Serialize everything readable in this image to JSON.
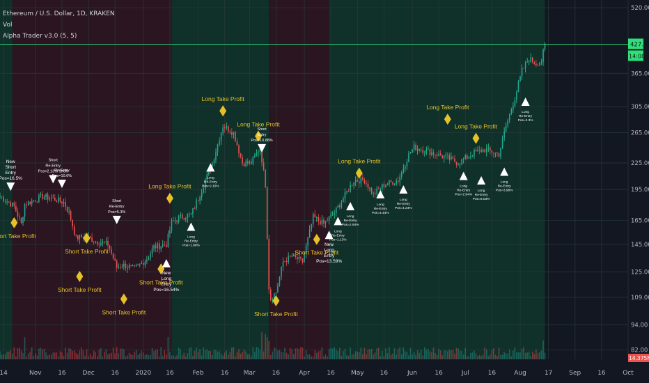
{
  "header": {
    "title": "Ethereum / U.S. Dollar, 1D, KRAKEN",
    "vol_label": "Vol",
    "indicator": "Alpha Trader v3.0 (5, 5)"
  },
  "colors": {
    "background": "#131722",
    "bull": "#26a69a",
    "bear": "#ef5350",
    "bull_wick": "#2fd18b",
    "bear_wick": "#e0494f",
    "long_zone": "#10302a",
    "short_zone": "#2a1520",
    "label_yellow": "#e6c229",
    "label_white": "#ffffff",
    "price_line": "#2fe07a"
  },
  "price_tags": {
    "current_price": "427.09",
    "countdown": "14:08:22",
    "volume": "14.375M"
  },
  "chart_data": {
    "type": "candlestick",
    "y_axis": {
      "scale": "log",
      "ylim": [
        78,
        530
      ],
      "ticks": [
        "520.00",
        "427.09",
        "365.00",
        "305.00",
        "265.00",
        "225.00",
        "195.00",
        "165.00",
        "145.00",
        "125.00",
        "109.00",
        "94.00",
        "82.00"
      ]
    },
    "x_axis": {
      "range": [
        "2019-10-12",
        "2020-10-01"
      ],
      "ticks": [
        {
          "label": "14",
          "date": "2019-10-14"
        },
        {
          "label": "Nov",
          "date": "2019-11-01"
        },
        {
          "label": "16",
          "date": "2019-11-16"
        },
        {
          "label": "Dec",
          "date": "2019-12-01"
        },
        {
          "label": "16",
          "date": "2019-12-16"
        },
        {
          "label": "2020",
          "date": "2020-01-01"
        },
        {
          "label": "16",
          "date": "2020-01-16"
        },
        {
          "label": "Feb",
          "date": "2020-02-01"
        },
        {
          "label": "16",
          "date": "2020-02-16"
        },
        {
          "label": "Mar",
          "date": "2020-03-01"
        },
        {
          "label": "16",
          "date": "2020-03-16"
        },
        {
          "label": "Apr",
          "date": "2020-04-01"
        },
        {
          "label": "16",
          "date": "2020-04-16"
        },
        {
          "label": "May",
          "date": "2020-05-01"
        },
        {
          "label": "16",
          "date": "2020-05-16"
        },
        {
          "label": "Jun",
          "date": "2020-06-01"
        },
        {
          "label": "16",
          "date": "2020-06-16"
        },
        {
          "label": "Jul",
          "date": "2020-07-01"
        },
        {
          "label": "16",
          "date": "2020-07-16"
        },
        {
          "label": "Aug",
          "date": "2020-08-01"
        },
        {
          "label": "17",
          "date": "2020-08-17"
        },
        {
          "label": "Sep",
          "date": "2020-09-01"
        },
        {
          "label": "16",
          "date": "2020-09-16"
        },
        {
          "label": "Oct",
          "date": "2020-10-01"
        }
      ]
    },
    "price_path": [
      [
        "2019-10-12",
        188
      ],
      [
        "2019-10-20",
        178
      ],
      [
        "2019-10-24",
        162
      ],
      [
        "2019-10-26",
        180
      ],
      [
        "2019-11-05",
        188
      ],
      [
        "2019-11-10",
        186
      ],
      [
        "2019-11-17",
        182
      ],
      [
        "2019-11-20",
        172
      ],
      [
        "2019-11-24",
        150
      ],
      [
        "2019-11-29",
        152
      ],
      [
        "2019-12-04",
        148
      ],
      [
        "2019-12-12",
        145
      ],
      [
        "2019-12-17",
        128
      ],
      [
        "2019-12-20",
        130
      ],
      [
        "2019-12-27",
        127
      ],
      [
        "2020-01-03",
        134
      ],
      [
        "2020-01-07",
        143
      ],
      [
        "2020-01-14",
        145
      ],
      [
        "2020-01-17",
        163
      ],
      [
        "2020-01-22",
        168
      ],
      [
        "2020-01-28",
        170
      ],
      [
        "2020-02-02",
        190
      ],
      [
        "2020-02-09",
        225
      ],
      [
        "2020-02-15",
        275
      ],
      [
        "2020-02-18",
        270
      ],
      [
        "2020-02-21",
        265
      ],
      [
        "2020-02-26",
        225
      ],
      [
        "2020-03-02",
        225
      ],
      [
        "2020-03-07",
        245
      ],
      [
        "2020-03-10",
        200
      ],
      [
        "2020-03-12",
        115
      ],
      [
        "2020-03-13",
        108
      ],
      [
        "2020-03-16",
        112
      ],
      [
        "2020-03-20",
        132
      ],
      [
        "2020-03-25",
        136
      ],
      [
        "2020-03-31",
        132
      ],
      [
        "2020-04-06",
        168
      ],
      [
        "2020-04-12",
        162
      ],
      [
        "2020-04-18",
        172
      ],
      [
        "2020-04-22",
        183
      ],
      [
        "2020-04-29",
        205
      ],
      [
        "2020-05-05",
        205
      ],
      [
        "2020-05-10",
        190
      ],
      [
        "2020-05-16",
        200
      ],
      [
        "2020-05-24",
        205
      ],
      [
        "2020-05-30",
        235
      ],
      [
        "2020-06-02",
        245
      ],
      [
        "2020-06-12",
        238
      ],
      [
        "2020-06-20",
        232
      ],
      [
        "2020-06-27",
        225
      ],
      [
        "2020-07-06",
        238
      ],
      [
        "2020-07-12",
        242
      ],
      [
        "2020-07-20",
        236
      ],
      [
        "2020-07-24",
        275
      ],
      [
        "2020-07-29",
        320
      ],
      [
        "2020-08-02",
        370
      ],
      [
        "2020-08-06",
        395
      ],
      [
        "2020-08-10",
        385
      ],
      [
        "2020-08-13",
        390
      ],
      [
        "2020-08-15",
        427.09
      ]
    ],
    "zones": [
      {
        "type": "long",
        "from": "2019-10-12",
        "to": "2019-10-19"
      },
      {
        "type": "short",
        "from": "2019-10-19",
        "to": "2020-01-17"
      },
      {
        "type": "long",
        "from": "2020-01-17",
        "to": "2020-03-12"
      },
      {
        "type": "short",
        "from": "2020-03-12",
        "to": "2020-04-15"
      },
      {
        "type": "long",
        "from": "2020-04-15",
        "to": "2020-08-15"
      }
    ],
    "markers": [
      {
        "kind": "sell",
        "date": "2019-10-18",
        "price": 195,
        "text": "New\nShort\nEntry\nPos=16.5%"
      },
      {
        "kind": "tp",
        "date": "2019-10-20",
        "price": 163,
        "text": "Short Take Profit"
      },
      {
        "kind": "sell",
        "date": "2019-11-11",
        "price": 203,
        "text": "Short\nRe-Entry\nPos=2.13% Short"
      },
      {
        "kind": "sell",
        "date": "2019-11-16",
        "price": 198,
        "text": "Re-Entry\nPos=10.6%"
      },
      {
        "kind": "tp",
        "date": "2019-11-30",
        "price": 150,
        "text": "Short Take Profit"
      },
      {
        "kind": "tp",
        "date": "2019-11-26",
        "price": 122,
        "text": "Short Take Profit"
      },
      {
        "kind": "sell",
        "date": "2019-12-17",
        "price": 163,
        "text": "Short\nRe-Entry\nPos=5.3%"
      },
      {
        "kind": "tp",
        "date": "2019-12-21",
        "price": 108,
        "text": "Short Take Profit"
      },
      {
        "kind": "tp",
        "date": "2020-01-11",
        "price": 127,
        "text": "Short Take Profit"
      },
      {
        "kind": "buy",
        "date": "2020-01-14",
        "price": 133,
        "text": "New\nLong\nEntry\nPos=16.54%"
      },
      {
        "kind": "tp",
        "date": "2020-01-16",
        "price": 186,
        "text": "Long Take Profit"
      },
      {
        "kind": "buy",
        "date": "2020-01-28",
        "price": 162,
        "text": "Long\nRe-Entry\nPos=1.89%"
      },
      {
        "kind": "buy",
        "date": "2020-02-08",
        "price": 223,
        "text": "Long\nRe-Entry\nPos=2.16%"
      },
      {
        "kind": "tp",
        "date": "2020-02-15",
        "price": 298,
        "text": "Long Take Profit"
      },
      {
        "kind": "tp",
        "date": "2020-03-06",
        "price": 260,
        "text": "Long Take Profit"
      },
      {
        "kind": "sell",
        "date": "2020-03-08",
        "price": 240,
        "text": "Short\nEntry\nPos=10.88%"
      },
      {
        "kind": "tp",
        "date": "2020-03-16",
        "price": 107,
        "text": "Short Take Profit"
      },
      {
        "kind": "tp",
        "date": "2020-04-08",
        "price": 149,
        "text": "Short Take Profit"
      },
      {
        "kind": "buy",
        "date": "2020-04-15",
        "price": 155,
        "text": "New\nLong\nEntry\nPos=13.59%"
      },
      {
        "kind": "buy",
        "date": "2020-04-20",
        "price": 167,
        "text": "Long\nRe-Entry\nPos=1.13%"
      },
      {
        "kind": "buy",
        "date": "2020-04-27",
        "price": 181,
        "text": "Long\nRe-Entry\nPos=2.94%"
      },
      {
        "kind": "tp",
        "date": "2020-05-02",
        "price": 213,
        "text": "Long Take Profit"
      },
      {
        "kind": "buy",
        "date": "2020-05-14",
        "price": 193,
        "text": "Long\nRe-Entry\nPos=4.44%"
      },
      {
        "kind": "buy",
        "date": "2020-05-27",
        "price": 198,
        "text": "Long\nRe-Entry\nPos=4.24%"
      },
      {
        "kind": "tp",
        "date": "2020-06-21",
        "price": 285,
        "text": "Long Take Profit"
      },
      {
        "kind": "buy",
        "date": "2020-06-30",
        "price": 213,
        "text": "Long\nRe-Entry\nPos=2.94%"
      },
      {
        "kind": "tp",
        "date": "2020-07-07",
        "price": 257,
        "text": "Long Take Profit"
      },
      {
        "kind": "buy",
        "date": "2020-07-10",
        "price": 208,
        "text": "Long\nRe-Entry\nPos=6.03%"
      },
      {
        "kind": "buy",
        "date": "2020-07-23",
        "price": 218,
        "text": "Long\nRe-Entry\nPos=3.98%"
      },
      {
        "kind": "buy",
        "date": "2020-08-04",
        "price": 318,
        "text": "Long\nRe-Entry\nPos=2.3%"
      }
    ]
  }
}
